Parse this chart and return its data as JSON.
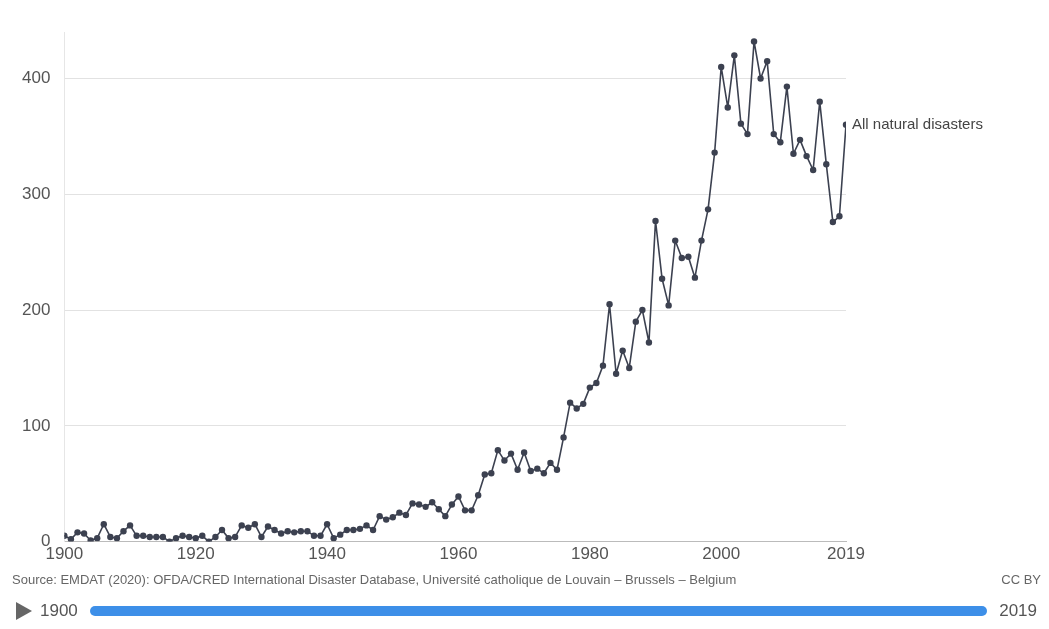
{
  "chart_data": {
    "type": "line",
    "x": [
      1900,
      1901,
      1902,
      1903,
      1904,
      1905,
      1906,
      1907,
      1908,
      1909,
      1910,
      1911,
      1912,
      1913,
      1914,
      1915,
      1916,
      1917,
      1918,
      1919,
      1920,
      1921,
      1922,
      1923,
      1924,
      1925,
      1926,
      1927,
      1928,
      1929,
      1930,
      1931,
      1932,
      1933,
      1934,
      1935,
      1936,
      1937,
      1938,
      1939,
      1940,
      1941,
      1942,
      1943,
      1944,
      1945,
      1946,
      1947,
      1948,
      1949,
      1950,
      1951,
      1952,
      1953,
      1954,
      1955,
      1956,
      1957,
      1958,
      1959,
      1960,
      1961,
      1962,
      1963,
      1964,
      1965,
      1966,
      1967,
      1968,
      1969,
      1970,
      1971,
      1972,
      1973,
      1974,
      1975,
      1976,
      1977,
      1978,
      1979,
      1980,
      1981,
      1982,
      1983,
      1984,
      1985,
      1986,
      1987,
      1988,
      1989,
      1990,
      1991,
      1992,
      1993,
      1994,
      1995,
      1996,
      1997,
      1998,
      1999,
      2000,
      2001,
      2002,
      2003,
      2004,
      2005,
      2006,
      2007,
      2008,
      2009,
      2010,
      2011,
      2012,
      2013,
      2014,
      2015,
      2016,
      2017,
      2018,
      2019
    ],
    "series": [
      {
        "name": "All natural disasters",
        "color": "#3c4150",
        "values": [
          5,
          2,
          8,
          7,
          1,
          3,
          15,
          4,
          3,
          9,
          14,
          5,
          5,
          4,
          4,
          4,
          0,
          3,
          5,
          4,
          3,
          5,
          0,
          4,
          10,
          3,
          4,
          14,
          12,
          15,
          4,
          13,
          10,
          7,
          9,
          8,
          9,
          9,
          5,
          5,
          15,
          3,
          6,
          10,
          10,
          11,
          14,
          10,
          22,
          19,
          21,
          25,
          23,
          33,
          32,
          30,
          34,
          28,
          22,
          32,
          39,
          27,
          27,
          40,
          58,
          59,
          79,
          70,
          76,
          62,
          77,
          61,
          63,
          59,
          68,
          62,
          90,
          120,
          115,
          119,
          133,
          137,
          152,
          205,
          145,
          165,
          150,
          190,
          200,
          172,
          277,
          227,
          204,
          260,
          245,
          246,
          228,
          260,
          287,
          336,
          410,
          375,
          420,
          361,
          352,
          432,
          400,
          415,
          352,
          345,
          393,
          335,
          347,
          333,
          321,
          380,
          326,
          276,
          281,
          360
        ]
      }
    ],
    "xlim": [
      1900,
      2019
    ],
    "xticks": [
      1900,
      1920,
      1940,
      1960,
      1980,
      2000,
      2019
    ],
    "ylim": [
      0,
      440
    ],
    "yticks": [
      0,
      100,
      200,
      300,
      400
    ],
    "grid": "y",
    "legend": false,
    "marker": "circle",
    "line_style": "solid",
    "annotations": [
      "Source: EMDAT (2020): OFDA/CRED International Disaster Database, Université catholique de Louvain – Brussels – Belgium",
      "CC BY",
      "1900",
      "2019"
    ]
  }
}
